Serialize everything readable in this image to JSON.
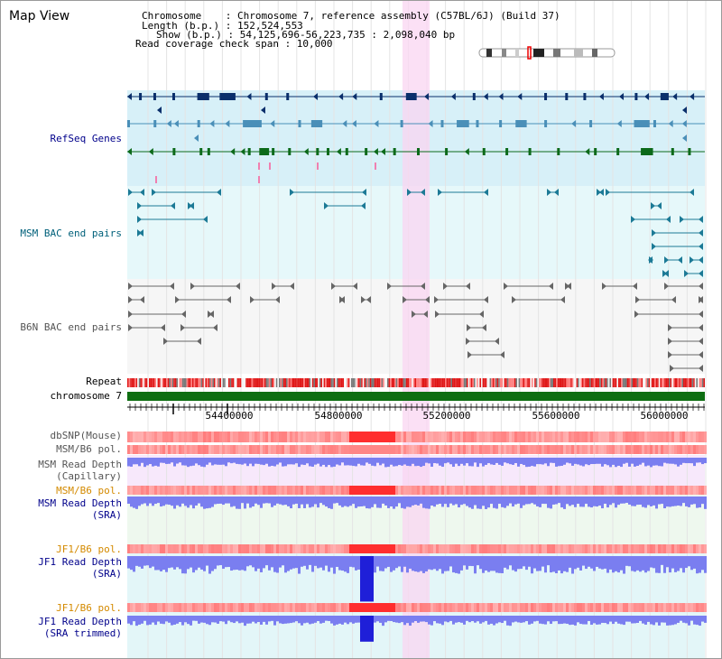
{
  "title": "Map View",
  "header": {
    "chromosome": "Chromosome    : Chromosome 7, reference assembly (C57BL/6J) (Build 37)",
    "length": "Length (b.p.) : 152,524,553",
    "show": "Show (b.p.) : 54,125,696-56,223,735 : 2,098,040 bp",
    "coverage": "Read coverage check span : 10,000"
  },
  "labels": {
    "refseq": "RefSeq Genes",
    "msm_bac": "MSM BAC end pairs",
    "b6n_bac": "B6N BAC end pairs",
    "repeat": "Repeat",
    "chromosome": "chromosome 7",
    "dbsnp": "dbSNP(Mouse)",
    "msm_b6_pol_1": "MSM/B6 pol.",
    "msm_read_cap_1": "MSM Read Depth",
    "msm_read_cap_2": "(Capillary)",
    "msm_b6_pol_2": "MSM/B6 pol.",
    "msm_read_sra_1": "MSM Read Depth",
    "msm_read_sra_2": "(SRA)",
    "jf1_b6_pol_1": "JF1/B6 pol.",
    "jf1_read_sra_1": "JF1 Read Depth",
    "jf1_read_sra_2": "(SRA)",
    "jf1_b6_pol_2": "JF1/B6 pol.",
    "jf1_trim_1": "JF1 Read Depth",
    "jf1_trim_2": "(SRA trimmed)"
  },
  "axis_ticks": [
    "54400000",
    "54800000",
    "55200000",
    "55600000",
    "56000000"
  ],
  "colors": {
    "refseq_bg": "#d7f0f8",
    "bac_bg": "#e6f8fa",
    "b6n_bg": "#f6f6f6",
    "highlight": "#f9d6f2",
    "navy": "#0a2f6b",
    "steel": "#4a8fb8",
    "green": "#0c6a1a",
    "chrom_green": "#0e6e12",
    "read_blue": "#1f1fd8",
    "label_blue": "#00008b",
    "label_teal": "#00607a",
    "label_gray": "#555555",
    "label_orange": "#d48a00"
  }
}
